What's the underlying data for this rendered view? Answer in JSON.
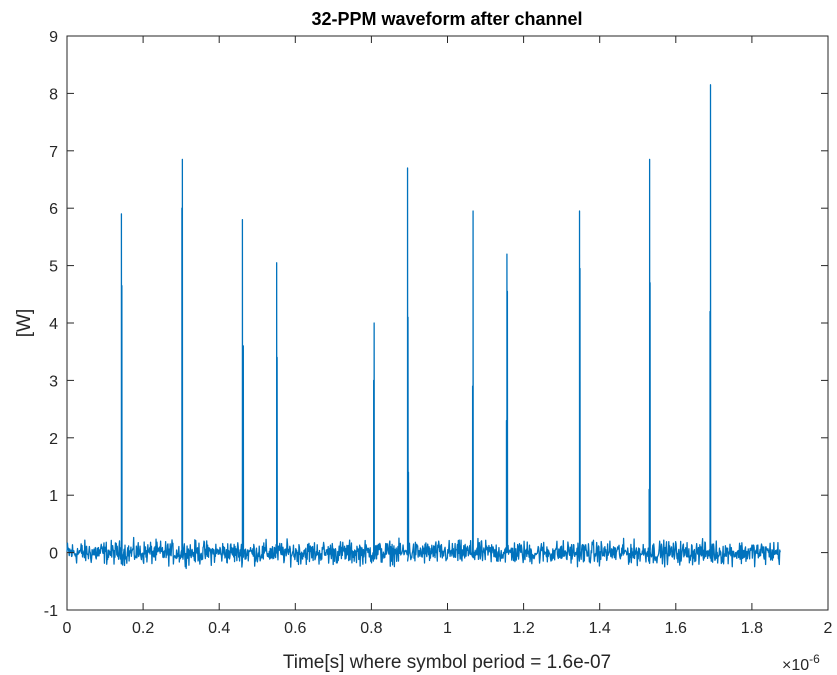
{
  "chart_data": {
    "type": "line",
    "title": "32-PPM waveform after channel",
    "xlabel": "Time[s] where symbol period = 1.6e-07",
    "ylabel": "[W]",
    "x_exponent_label": "×10",
    "x_exponent_power": "-6",
    "xlim": [
      0,
      2
    ],
    "ylim": [
      -1,
      9
    ],
    "x_ticks": [
      0,
      0.2,
      0.4,
      0.6,
      0.8,
      1,
      1.2,
      1.4,
      1.6,
      1.8,
      2
    ],
    "x_tick_labels": [
      "0",
      "0.2",
      "0.4",
      "0.6",
      "0.8",
      "1",
      "1.2",
      "1.4",
      "1.6",
      "1.8",
      "2"
    ],
    "y_ticks": [
      -1,
      0,
      1,
      2,
      3,
      4,
      5,
      6,
      7,
      8,
      9
    ],
    "y_tick_labels": [
      "-1",
      "0",
      "1",
      "2",
      "3",
      "4",
      "5",
      "6",
      "7",
      "8",
      "9"
    ],
    "grid": false,
    "line_color": "#0072bd",
    "noise_baseline": 0,
    "noise_amplitude": 0.15,
    "signal_end": 1.875,
    "pulses": [
      {
        "x": 0.143,
        "peaks": [
          5.9,
          4.65
        ]
      },
      {
        "x": 0.302,
        "peaks": [
          6.0,
          6.85
        ]
      },
      {
        "x": 0.461,
        "peaks": [
          5.8,
          3.35,
          3.6
        ]
      },
      {
        "x": 0.551,
        "peaks": [
          5.05,
          3.4
        ]
      },
      {
        "x": 0.806,
        "peaks": [
          3.0,
          4.0
        ]
      },
      {
        "x": 0.895,
        "peaks": [
          6.7,
          4.1,
          1.4
        ]
      },
      {
        "x": 1.066,
        "peaks": [
          2.9,
          5.95
        ]
      },
      {
        "x": 1.155,
        "peaks": [
          2.3,
          5.2,
          4.55
        ]
      },
      {
        "x": 1.347,
        "peaks": [
          5.95,
          4.95
        ]
      },
      {
        "x": 1.53,
        "peaks": [
          1.1,
          6.85,
          4.7
        ]
      },
      {
        "x": 1.69,
        "peaks": [
          4.2,
          8.15
        ]
      }
    ]
  }
}
